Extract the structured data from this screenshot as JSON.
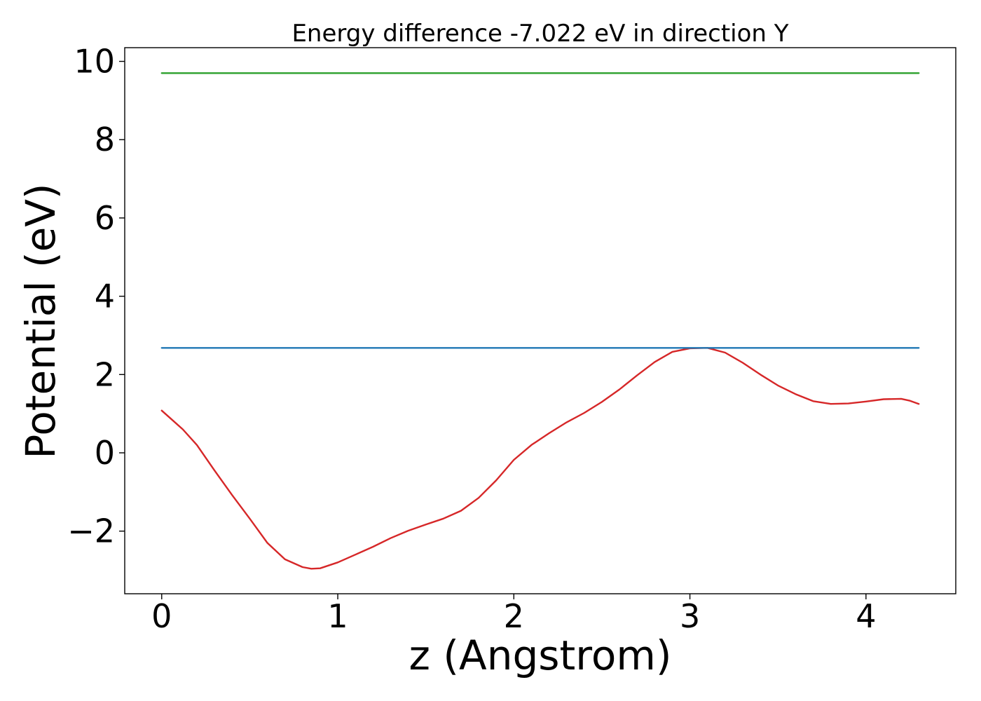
{
  "chart_data": {
    "type": "line",
    "title": "Energy difference -7.022 eV in direction Y",
    "xlabel": "z (Angstrom)",
    "ylabel": "Potential (eV)",
    "xlim": [
      -0.21,
      4.51
    ],
    "ylim": [
      -3.6,
      10.35
    ],
    "xticks": [
      0,
      1,
      2,
      3,
      4
    ],
    "xtick_labels": [
      "0",
      "1",
      "2",
      "3",
      "4"
    ],
    "yticks": [
      -2,
      0,
      2,
      4,
      6,
      8,
      10
    ],
    "ytick_labels": [
      "−2",
      "0",
      "2",
      "4",
      "6",
      "8",
      "10"
    ],
    "grid": false,
    "legend": "none",
    "series": [
      {
        "color": "#d62728",
        "x": [
          0,
          0.05,
          0.12,
          0.2,
          0.3,
          0.4,
          0.5,
          0.6,
          0.7,
          0.8,
          0.85,
          0.9,
          1.0,
          1.1,
          1.2,
          1.3,
          1.4,
          1.5,
          1.6,
          1.7,
          1.8,
          1.9,
          2.0,
          2.1,
          2.2,
          2.3,
          2.4,
          2.5,
          2.6,
          2.7,
          2.8,
          2.9,
          3.0,
          3.1,
          3.2,
          3.3,
          3.4,
          3.5,
          3.6,
          3.7,
          3.8,
          3.9,
          4.0,
          4.1,
          4.2,
          4.25,
          4.3
        ],
        "y": [
          1.08,
          0.88,
          0.6,
          0.2,
          -0.45,
          -1.08,
          -1.68,
          -2.3,
          -2.72,
          -2.92,
          -2.96,
          -2.95,
          -2.8,
          -2.6,
          -2.4,
          -2.18,
          -1.99,
          -1.83,
          -1.68,
          -1.48,
          -1.15,
          -0.7,
          -0.18,
          0.2,
          0.5,
          0.78,
          1.02,
          1.3,
          1.62,
          1.98,
          2.32,
          2.58,
          2.67,
          2.68,
          2.56,
          2.3,
          2.0,
          1.72,
          1.5,
          1.32,
          1.25,
          1.26,
          1.31,
          1.37,
          1.38,
          1.33,
          1.25
        ]
      },
      {
        "color": "#1f77b4",
        "x": [
          0,
          4.3
        ],
        "y": [
          2.68,
          2.68
        ]
      },
      {
        "color": "#2ca02c",
        "x": [
          0,
          4.3
        ],
        "y": [
          9.7,
          9.7
        ]
      }
    ]
  }
}
